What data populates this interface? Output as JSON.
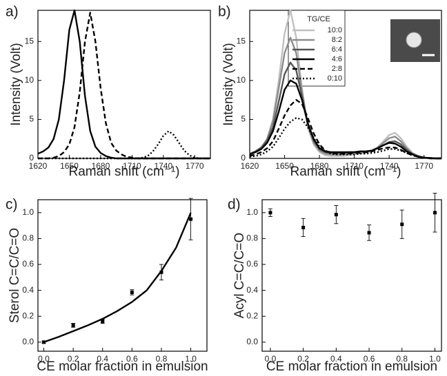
{
  "chart_data": [
    {
      "type": "line",
      "panel_label": "a)",
      "xlabel": "Raman shift (cm⁻¹)",
      "ylabel": "Intensity (Volt)",
      "xlim": [
        1620,
        1785
      ],
      "ylim": [
        0,
        19
      ],
      "xticks": [
        1620,
        1650,
        1680,
        1710,
        1740,
        1770
      ],
      "yticks": [
        0,
        5,
        10,
        15
      ],
      "x": [
        1620,
        1625,
        1630,
        1635,
        1640,
        1645,
        1650,
        1655,
        1660,
        1665,
        1670,
        1675,
        1680,
        1685,
        1690,
        1695,
        1700,
        1705,
        1710,
        1715,
        1720,
        1725,
        1730,
        1735,
        1740,
        1745,
        1750,
        1755,
        1760,
        1765,
        1770,
        1775,
        1780,
        1785
      ],
      "series": [
        {
          "color": "#000000",
          "dash": "solid",
          "values": [
            0.6,
            0.9,
            1.4,
            2.5,
            5,
            10,
            16.5,
            19,
            15,
            8,
            3.5,
            1.5,
            0.7,
            0.3,
            0.1,
            0,
            0,
            0,
            0,
            0,
            0,
            0,
            0,
            0,
            0,
            0,
            0,
            0,
            0,
            0,
            0,
            0,
            0,
            0
          ]
        },
        {
          "color": "#000000",
          "dash": "dashed",
          "values": [
            0,
            0,
            0,
            0.1,
            0.3,
            0.8,
            1.8,
            4,
            8.5,
            15,
            18.7,
            15,
            9,
            4.5,
            2,
            1,
            0.5,
            0.2,
            0.1,
            0,
            0,
            0,
            0,
            0,
            0,
            0,
            0,
            0,
            0,
            0,
            0,
            0,
            0,
            0
          ]
        },
        {
          "color": "#000000",
          "dash": "dotted",
          "values": [
            0,
            0,
            0,
            0,
            0,
            0,
            0,
            0,
            0,
            0,
            0,
            0,
            0,
            0,
            0,
            0,
            0,
            0,
            0,
            0,
            0.1,
            0.3,
            0.9,
            1.8,
            2.9,
            3.5,
            3,
            2,
            1,
            0.4,
            0.1,
            0,
            0,
            0
          ]
        }
      ]
    },
    {
      "type": "line",
      "panel_label": "b)",
      "xlabel": "Raman shift (cm⁻¹)",
      "ylabel": "Intensity (Volt)",
      "legend_title": "TG/CE",
      "xlim": [
        1620,
        1785
      ],
      "ylim": [
        0,
        19
      ],
      "xticks": [
        1620,
        1650,
        1680,
        1710,
        1740,
        1770
      ],
      "yticks": [
        0,
        5,
        10,
        15
      ],
      "x": [
        1620,
        1625,
        1630,
        1635,
        1640,
        1645,
        1650,
        1655,
        1660,
        1665,
        1670,
        1675,
        1680,
        1685,
        1690,
        1695,
        1700,
        1705,
        1710,
        1715,
        1720,
        1725,
        1730,
        1735,
        1740,
        1745,
        1750,
        1755,
        1760,
        1765,
        1770,
        1775,
        1780,
        1785
      ],
      "series": [
        {
          "name": "10:0",
          "color": "#c0c0c0",
          "dash": "solid",
          "values": [
            0.5,
            0.8,
            1.3,
            2.5,
            5,
            10,
            16,
            19,
            15.5,
            9,
            4,
            1.8,
            0.8,
            0.4,
            0.3,
            0.3,
            0.3,
            0.4,
            0.5,
            0.6,
            0.7,
            0.9,
            1.4,
            2.2,
            3,
            3.3,
            2.6,
            1.5,
            0.7,
            0.3,
            0.1,
            0.05,
            0,
            0
          ]
        },
        {
          "name": "8:2",
          "color": "#8c8c8c",
          "dash": "solid",
          "values": [
            0.6,
            0.9,
            1.4,
            2.5,
            4.8,
            9,
            13.5,
            15.5,
            13.5,
            8.5,
            4.2,
            2,
            1,
            0.6,
            0.5,
            0.5,
            0.5,
            0.6,
            0.7,
            0.8,
            0.8,
            1,
            1.4,
            2,
            2.6,
            2.8,
            2.2,
            1.3,
            0.6,
            0.3,
            0.1,
            0.05,
            0,
            0
          ]
        },
        {
          "name": "6:4",
          "color": "#555555",
          "dash": "solid",
          "values": [
            0.6,
            0.9,
            1.4,
            2.3,
            4,
            7.3,
            10.8,
            12.3,
            11.3,
            8,
            4.5,
            2.3,
            1.2,
            0.8,
            0.7,
            0.7,
            0.7,
            0.8,
            0.8,
            0.9,
            0.9,
            1,
            1.3,
            1.7,
            2.1,
            2.2,
            1.8,
            1.1,
            0.6,
            0.3,
            0.1,
            0.05,
            0,
            0
          ]
        },
        {
          "name": "4:6",
          "color": "#000000",
          "dash": "solid",
          "values": [
            0.5,
            0.8,
            1.2,
            2,
            3.5,
            6,
            8.8,
            10,
            9.6,
            7.5,
            4.5,
            2.5,
            1.3,
            0.9,
            0.8,
            0.8,
            0.8,
            0.8,
            0.8,
            0.9,
            0.9,
            1,
            1.3,
            1.7,
            2,
            1.9,
            1.5,
            0.9,
            0.5,
            0.2,
            0.1,
            0.05,
            0,
            0
          ]
        },
        {
          "name": "2:8",
          "color": "#000000",
          "dash": "dashed",
          "values": [
            0.3,
            0.5,
            0.8,
            1.3,
            2.2,
            3.8,
            5.5,
            6.8,
            7.5,
            7,
            5.2,
            3.2,
            1.8,
            1,
            0.7,
            0.6,
            0.6,
            0.6,
            0.7,
            0.7,
            0.8,
            0.9,
            1.1,
            1.3,
            1.4,
            1.4,
            1.1,
            0.7,
            0.4,
            0.2,
            0.1,
            0,
            0,
            0
          ]
        },
        {
          "name": "0:10",
          "color": "#000000",
          "dash": "dotted",
          "values": [
            0.2,
            0.3,
            0.5,
            0.9,
            1.5,
            2.6,
            3.8,
            4.7,
            5.2,
            5,
            4,
            2.6,
            1.5,
            0.9,
            0.6,
            0.5,
            0.5,
            0.5,
            0.5,
            0.6,
            0.6,
            0.7,
            0.8,
            1,
            1.2,
            1.2,
            1,
            0.7,
            0.4,
            0.2,
            0.1,
            0,
            0,
            0
          ]
        }
      ]
    },
    {
      "type": "scatter",
      "panel_label": "c)",
      "xlabel": "CE molar fraction in emulsion",
      "ylabel": "Sterol C=C/C=O",
      "xlim": [
        -0.04,
        1.11
      ],
      "ylim": [
        -0.07,
        1.1
      ],
      "xticks": [
        {
          "value": 0,
          "label": "0.0"
        },
        0.2,
        0.4,
        0.6,
        0.8,
        {
          "value": 1,
          "label": "1.0"
        }
      ],
      "yticks": [
        {
          "value": 0,
          "label": "0.0"
        },
        0.2,
        0.4,
        0.6,
        0.8,
        {
          "value": 1,
          "label": "1.0"
        }
      ],
      "x": [
        0,
        0.2,
        0.4,
        0.6,
        0.8,
        1.0
      ],
      "values": [
        0.0,
        0.13,
        0.16,
        0.385,
        0.54,
        0.95
      ],
      "errors": [
        0.01,
        0.015,
        0.015,
        0.02,
        0.06,
        0.16
      ],
      "color": "#000000",
      "fit": {
        "x": [
          0,
          0.1,
          0.2,
          0.3,
          0.4,
          0.5,
          0.6,
          0.7,
          0.8,
          0.9,
          1.0
        ],
        "values": [
          0,
          0.04,
          0.085,
          0.13,
          0.18,
          0.24,
          0.31,
          0.4,
          0.55,
          0.73,
          1.0
        ]
      }
    },
    {
      "type": "scatter",
      "panel_label": "d)",
      "xlabel": "CE molar fraction in emulsion",
      "ylabel": "Acyl C=C/C=O",
      "xlim": [
        -0.05,
        1.04
      ],
      "ylim": [
        -0.07,
        1.1
      ],
      "xticks": [
        {
          "value": 0,
          "label": "0.0"
        },
        0.2,
        0.4,
        0.6,
        0.8,
        {
          "value": 1,
          "label": "1.0"
        }
      ],
      "yticks": [
        {
          "value": 0,
          "label": "0.0"
        },
        0.2,
        0.4,
        0.6,
        0.8,
        {
          "value": 1,
          "label": "1.0"
        }
      ],
      "x": [
        0,
        0.2,
        0.4,
        0.6,
        0.8,
        1.0
      ],
      "values": [
        1.0,
        0.885,
        0.985,
        0.845,
        0.91,
        1.0
      ],
      "errors": [
        0.03,
        0.07,
        0.07,
        0.06,
        0.11,
        0.15
      ],
      "color": "#000000"
    }
  ]
}
